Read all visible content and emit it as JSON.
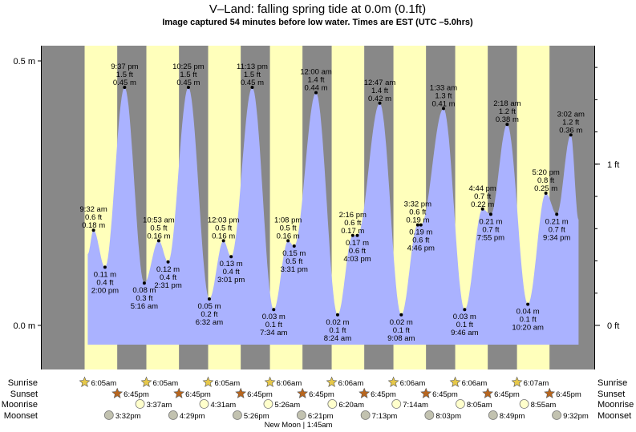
{
  "header": {
    "title": "V–Land: falling  spring tide at 0.0m (0.1ft)",
    "subtitle": "Image captured 54 minutes before low water. Times are EST (UTC –5.0hrs)"
  },
  "chart_data": {
    "type": "area",
    "y_unit_left": "m",
    "y_unit_right": "ft",
    "ylim_m": [
      -0.063,
      0.5
    ],
    "left_ticks": [
      {
        "value": 0.0,
        "label": "0.0 m"
      },
      {
        "value": 0.5,
        "label": "0.5 m"
      }
    ],
    "right_ticks": [
      {
        "value": 0.0,
        "label": "0 ft"
      },
      {
        "value": 0.3048,
        "label": "1 ft"
      }
    ],
    "grid": false,
    "series": [
      {
        "values": [
          {
            "time": "9:32 am",
            "ft": "0.6 ft",
            "m": 0.18,
            "m_label": "0.18 m",
            "kind": "high"
          },
          {
            "time": "2:00 pm",
            "ft": "0.4 ft",
            "m": 0.11,
            "m_label": "0.11 m",
            "kind": "low"
          },
          {
            "time": "9:37 pm",
            "ft": "1.5 ft",
            "m": 0.45,
            "m_label": "0.45 m",
            "kind": "high"
          },
          {
            "time": "5:16 am",
            "ft": "0.3 ft",
            "m": 0.08,
            "m_label": "0.08 m",
            "kind": "low"
          },
          {
            "time": "10:53 am",
            "ft": "0.5 ft",
            "m": 0.16,
            "m_label": "0.16 m",
            "kind": "high"
          },
          {
            "time": "2:31 pm",
            "ft": "0.4 ft",
            "m": 0.12,
            "m_label": "0.12 m",
            "kind": "low"
          },
          {
            "time": "10:25 pm",
            "ft": "1.5 ft",
            "m": 0.45,
            "m_label": "0.45 m",
            "kind": "high"
          },
          {
            "time": "6:32 am",
            "ft": "0.2 ft",
            "m": 0.05,
            "m_label": "0.05 m",
            "kind": "low"
          },
          {
            "time": "12:03 pm",
            "ft": "0.5 ft",
            "m": 0.16,
            "m_label": "0.16 m",
            "kind": "high"
          },
          {
            "time": "3:01 pm",
            "ft": "0.4 ft",
            "m": 0.13,
            "m_label": "0.13 m",
            "kind": "low"
          },
          {
            "time": "11:13 pm",
            "ft": "1.5 ft",
            "m": 0.45,
            "m_label": "0.45 m",
            "kind": "high"
          },
          {
            "time": "7:34 am",
            "ft": "0.1 ft",
            "m": 0.03,
            "m_label": "0.03 m",
            "kind": "low"
          },
          {
            "time": "1:08 pm",
            "ft": "0.5 ft",
            "m": 0.16,
            "m_label": "0.16 m",
            "kind": "high"
          },
          {
            "time": "3:31 pm",
            "ft": "0.5 ft",
            "m": 0.15,
            "m_label": "0.15 m",
            "kind": "low"
          },
          {
            "time": "12:00 am",
            "ft": "1.4 ft",
            "m": 0.44,
            "m_label": "0.44 m",
            "kind": "high"
          },
          {
            "time": "8:24 am",
            "ft": "0.1 ft",
            "m": 0.02,
            "m_label": "0.02 m",
            "kind": "low"
          },
          {
            "time": "2:16 pm",
            "ft": "0.6 ft",
            "m": 0.17,
            "m_label": "0.17 m",
            "kind": "high"
          },
          {
            "time": "4:03 pm",
            "ft": "0.6 ft",
            "m": 0.17,
            "m_label": "0.17 m",
            "kind": "low"
          },
          {
            "time": "12:47 am",
            "ft": "1.4 ft",
            "m": 0.42,
            "m_label": "0.42 m",
            "kind": "high"
          },
          {
            "time": "9:08 am",
            "ft": "0.1 ft",
            "m": 0.02,
            "m_label": "0.02 m",
            "kind": "low"
          },
          {
            "time": "3:32 pm",
            "ft": "0.6 ft",
            "m": 0.19,
            "m_label": "0.19 m",
            "kind": "high"
          },
          {
            "time": "4:46 pm",
            "ft": "0.6 ft",
            "m": 0.19,
            "m_label": "0.19 m",
            "kind": "low"
          },
          {
            "time": "1:33 am",
            "ft": "1.3 ft",
            "m": 0.41,
            "m_label": "0.41 m",
            "kind": "high"
          },
          {
            "time": "9:46 am",
            "ft": "0.1 ft",
            "m": 0.03,
            "m_label": "0.03 m",
            "kind": "low"
          },
          {
            "time": "4:44 pm",
            "ft": "0.7 ft",
            "m": 0.22,
            "m_label": "0.22 m",
            "kind": "high"
          },
          {
            "time": "7:55 pm",
            "ft": "0.7 ft",
            "m": 0.21,
            "m_label": "0.21 m",
            "kind": "low"
          },
          {
            "time": "2:18 am",
            "ft": "1.2 ft",
            "m": 0.38,
            "m_label": "0.38 m",
            "kind": "high"
          },
          {
            "time": "10:20 am",
            "ft": "0.1 ft",
            "m": 0.04,
            "m_label": "0.04 m",
            "kind": "low"
          },
          {
            "time": "5:20 pm",
            "ft": "0.8 ft",
            "m": 0.25,
            "m_label": "0.25 m",
            "kind": "high"
          },
          {
            "time": "9:34 pm",
            "ft": "0.7 ft",
            "m": 0.21,
            "m_label": "0.21 m",
            "kind": "low"
          },
          {
            "time": "3:02 am",
            "ft": "1.2 ft",
            "m": 0.36,
            "m_label": "0.36 m",
            "kind": "high"
          }
        ]
      }
    ]
  },
  "days": [
    {
      "sunrise": "6:05am",
      "sunset": "6:45pm",
      "moonrise": "",
      "moonset": "3:32pm"
    },
    {
      "sunrise": "6:05am",
      "sunset": "6:45pm",
      "moonrise": "3:37am",
      "moonset": "4:29pm"
    },
    {
      "sunrise": "6:05am",
      "sunset": "6:45pm",
      "moonrise": "4:31am",
      "moonset": "5:26pm"
    },
    {
      "sunrise": "6:06am",
      "sunset": "6:45pm",
      "moonrise": "5:26am",
      "moonset": "6:21pm"
    },
    {
      "sunrise": "6:06am",
      "sunset": "6:45pm",
      "moonrise": "6:20am",
      "moonset": "7:13pm"
    },
    {
      "sunrise": "6:06am",
      "sunset": "6:45pm",
      "moonrise": "7:14am",
      "moonset": "8:03pm"
    },
    {
      "sunrise": "6:06am",
      "sunset": "6:45pm",
      "moonrise": "8:05am",
      "moonset": "8:49pm"
    },
    {
      "sunrise": "6:07am",
      "sunset": "6:45pm",
      "moonrise": "8:55am",
      "moonset": "9:32pm"
    }
  ],
  "row_labels": {
    "sunrise": "Sunrise",
    "sunset": "Sunset",
    "moonrise": "Moonrise",
    "moonset": "Moonset"
  },
  "footer": {
    "moon_phase": "New Moon | 1:45am"
  },
  "colors": {
    "night": "#888888",
    "day": "#ffffbb",
    "water": "#aab2ff",
    "sunrise_star": "#e6c84a",
    "sunset_star": "#b8661e",
    "moonrise": "#ffffcc",
    "moonset": "#c2c2b0"
  }
}
